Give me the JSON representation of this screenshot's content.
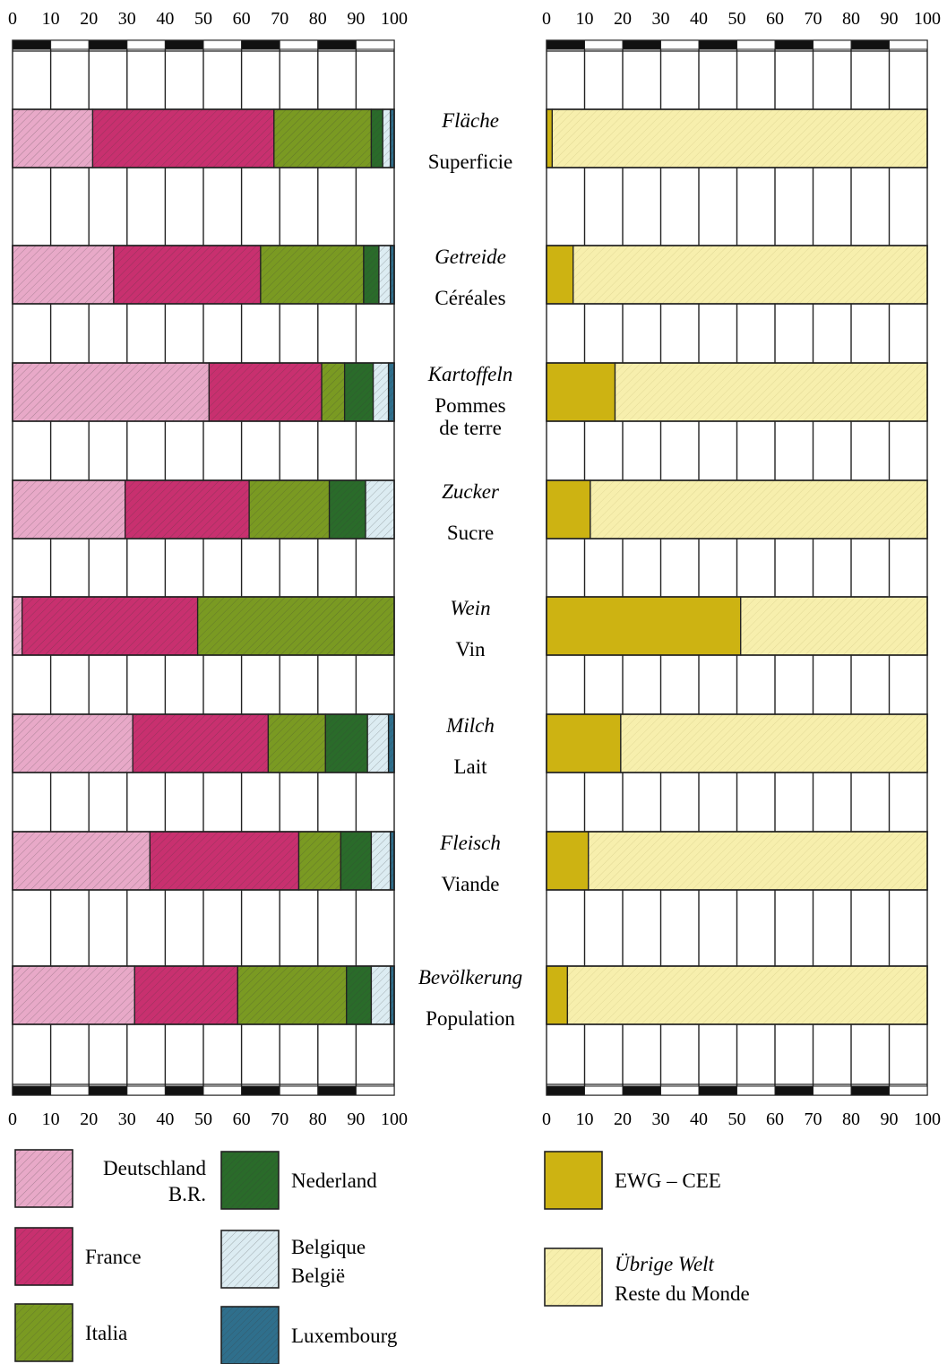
{
  "colors": {
    "deutschland": "#e8a9c8",
    "france": "#c8306f",
    "italia": "#7a9a22",
    "nederland": "#2a6b2a",
    "belgique": "#dcecf2",
    "luxembourg": "#2f6f8c",
    "ewg": "#cdb312",
    "rest": "#f7efad"
  },
  "chart_data": [
    {
      "type": "bar",
      "orientation": "horizontal",
      "stacked": true,
      "xlim": [
        0,
        100
      ],
      "xticks": [
        "0",
        "10",
        "20",
        "30",
        "40",
        "50",
        "60",
        "70",
        "80",
        "90",
        "100"
      ],
      "categories": [
        {
          "de": "Fläche",
          "fr": "Superficie"
        },
        {
          "de": "Getreide",
          "fr": "Céréales"
        },
        {
          "de": "Kartoffeln",
          "fr": "Pommes de terre",
          "fr_line1": "Pommes",
          "fr_line2": "de terre"
        },
        {
          "de": "Zucker",
          "fr": "Sucre"
        },
        {
          "de": "Wein",
          "fr": "Vin"
        },
        {
          "de": "Milch",
          "fr": "Lait"
        },
        {
          "de": "Fleisch",
          "fr": "Viande"
        },
        {
          "de": "Bevölkerung",
          "fr": "Population"
        }
      ],
      "series": [
        {
          "key": "deutschland",
          "values": [
            21,
            26.5,
            51.5,
            29.5,
            2.5,
            31.5,
            36,
            32
          ]
        },
        {
          "key": "france",
          "values": [
            47.5,
            38.5,
            29.5,
            32.5,
            46,
            35.5,
            39,
            27
          ]
        },
        {
          "key": "italia",
          "values": [
            25.5,
            27,
            6,
            21,
            51.5,
            15,
            11,
            28.5
          ]
        },
        {
          "key": "nederland",
          "values": [
            3,
            4,
            7.5,
            9.5,
            0,
            11,
            8,
            6.5
          ]
        },
        {
          "key": "belgique",
          "values": [
            2,
            3,
            4,
            7.5,
            0,
            5.5,
            5,
            5
          ]
        },
        {
          "key": "luxembourg",
          "values": [
            1,
            1,
            1.5,
            0,
            0,
            1.5,
            1,
            1
          ]
        }
      ],
      "legend": [
        {
          "key": "deutschland",
          "label_1": "Deutschland",
          "label_2": "B.R."
        },
        {
          "key": "nederland",
          "label_1": "Nederland"
        },
        {
          "key": "france",
          "label_1": "France"
        },
        {
          "key": "belgique",
          "label_1": "Belgique",
          "label_2": "België"
        },
        {
          "key": "italia",
          "label_1": "Italia"
        },
        {
          "key": "luxembourg",
          "label_1": "Luxembourg"
        }
      ]
    },
    {
      "type": "bar",
      "orientation": "horizontal",
      "stacked": true,
      "xlim": [
        0,
        100
      ],
      "xticks": [
        "0",
        "10",
        "20",
        "30",
        "40",
        "50",
        "60",
        "70",
        "80",
        "90",
        "100"
      ],
      "categories": [
        "Fläche",
        "Getreide",
        "Kartoffeln",
        "Zucker",
        "Wein",
        "Milch",
        "Fleisch",
        "Bevölkerung"
      ],
      "series": [
        {
          "key": "ewg",
          "values": [
            1.5,
            7,
            18,
            11.5,
            51,
            19.5,
            11,
            5.5
          ]
        },
        {
          "key": "rest",
          "values": [
            98.5,
            93,
            82,
            88.5,
            49,
            80.5,
            89,
            94.5
          ]
        }
      ],
      "legend": [
        {
          "key": "ewg",
          "label_1": "EWG – CEE"
        },
        {
          "key": "rest",
          "label_1": "Übrige Welt",
          "label_2": "Reste du Monde"
        }
      ]
    }
  ]
}
